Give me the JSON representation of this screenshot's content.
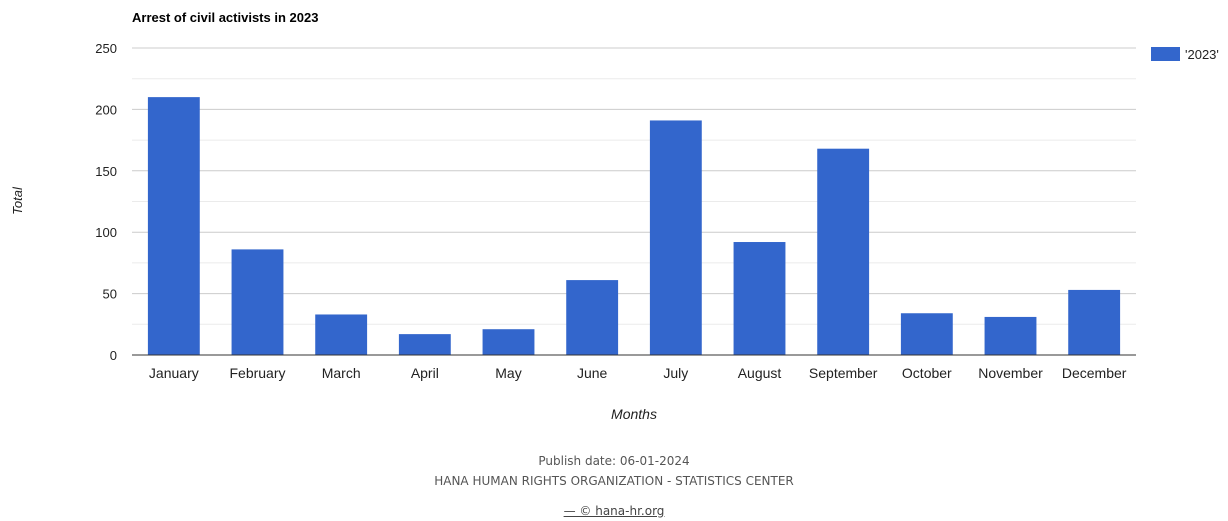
{
  "chart_data": {
    "type": "bar",
    "title": "Arrest of civil activists in 2023",
    "xlabel": "Months",
    "ylabel": "Total",
    "categories": [
      "January",
      "February",
      "March",
      "April",
      "May",
      "June",
      "July",
      "August",
      "September",
      "October",
      "November",
      "December"
    ],
    "series": [
      {
        "name": "'2023'",
        "values": [
          210,
          86,
          33,
          17,
          21,
          61,
          191,
          92,
          168,
          34,
          31,
          53
        ],
        "color": "#3366cc"
      }
    ],
    "ylim": [
      0,
      250
    ],
    "yticks": [
      0,
      50,
      100,
      150,
      200,
      250
    ],
    "grid": true,
    "legend_position": "top-right"
  },
  "footer": {
    "publish_date": "Publish date: 06-01-2024",
    "organization": "HANA HUMAN RIGHTS ORGANIZATION - STATISTICS CENTER",
    "site": "— © hana-hr.org"
  }
}
